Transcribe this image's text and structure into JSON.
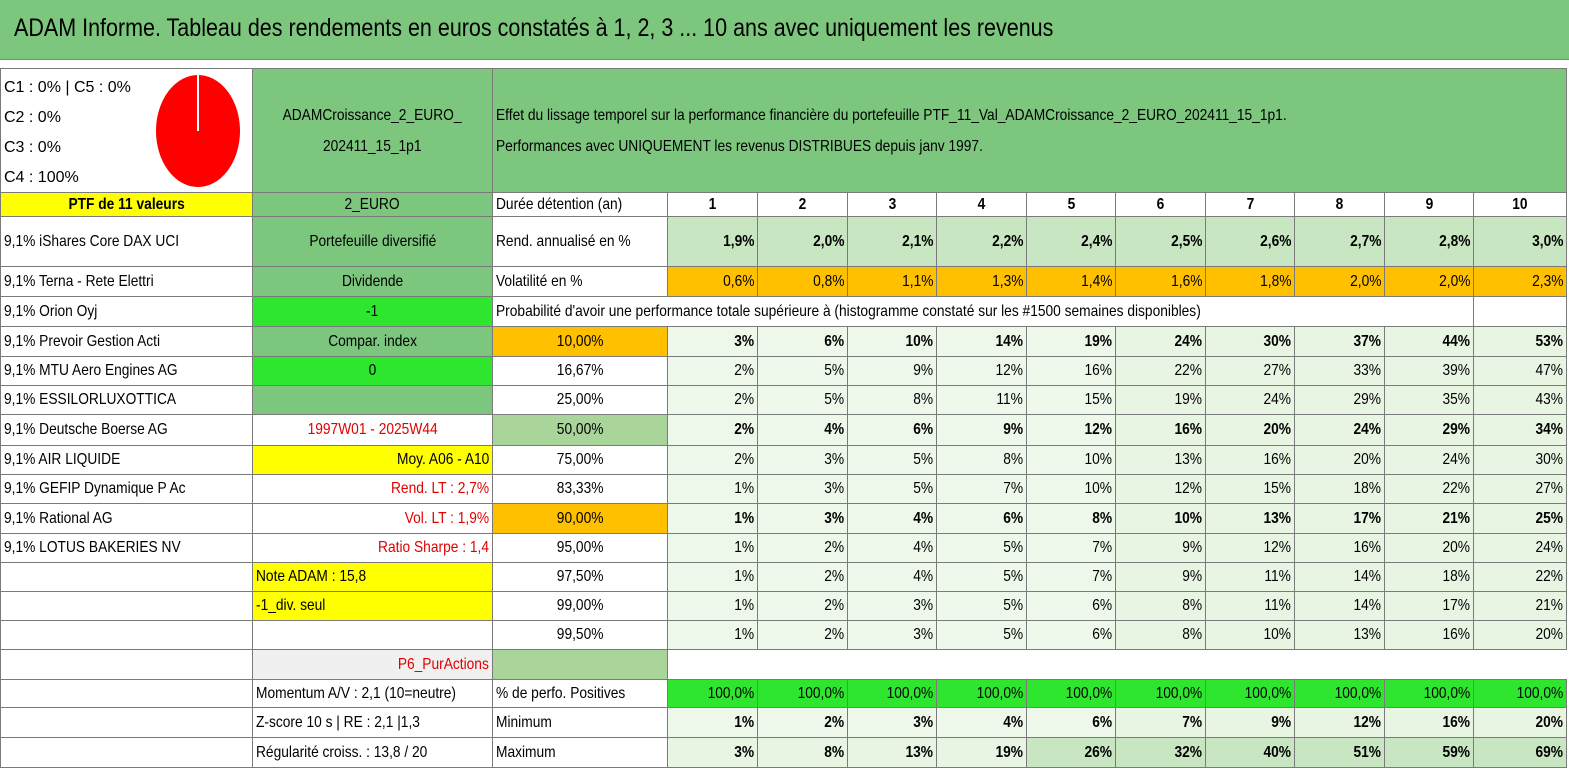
{
  "title": "ADAM Informe. Tableau des rendements en euros constatés à 1, 2, 3 ... 10 ans avec uniquement les revenus",
  "pie": {
    "labels": [
      "C1 : 0% | C5 : 0%",
      "C2 : 0%",
      "C3 : 0%",
      "C4 : 100%"
    ],
    "color": "#ff0000"
  },
  "portfolio_name_line1": "ADAMCroissance_2_EURO_",
  "portfolio_name_line2": "202411_15_1p1",
  "description_line1": "Effet du lissage temporel sur la performance financière du portefeuille PTF_11_Val_ADAMCroissance_2_EURO_202411_15_1p1.",
  "description_line2": "Performances avec UNIQUEMENT les revenus DISTRIBUES depuis janv 1997.",
  "ptf_label": "PTF de 11 valeurs",
  "currency_label": "2_EURO",
  "duration_label": "Durée détention (an)",
  "years": [
    "1",
    "2",
    "3",
    "4",
    "5",
    "6",
    "7",
    "8",
    "9",
    "10"
  ],
  "holdings": [
    "9,1% iShares Core DAX UCI",
    "9,1% Terna - Rete Elettri",
    "9,1% Orion Oyj",
    "9,1% Prevoir Gestion Acti",
    "9,1% MTU Aero Engines AG",
    "9,1% ESSILORLUXOTTICA",
    "9,1% Deutsche Boerse AG",
    "9,1% AIR LIQUIDE",
    "9,1% GEFIP Dynamique P Ac",
    "9,1% Rational AG",
    "9,1% LOTUS BAKERIES NV"
  ],
  "side_info": {
    "portfolio_type": "Portefeuille diversifié",
    "dividend": "Dividende",
    "minus_one": "-1",
    "compar_index": "Compar. index",
    "zero": "0",
    "period": "1997W01 - 2025W44",
    "moy": "Moy. A06 - A10",
    "rend_lt": "Rend. LT : 2,7%",
    "vol_lt": "Vol. LT : 1,9%",
    "sharpe": "Ratio Sharpe : 1,4",
    "note_adam": "Note ADAM : 15,8",
    "div_seul": "-1_div. seul",
    "p6": "P6_PurActions",
    "momentum": "Momentum A/V : 2,1 (10=neutre)",
    "zscore": "Z-score 10 s | RE : 2,1 |1,3",
    "regularite": "Régularité croiss. : 13,8 / 20"
  },
  "rend_label": "Rend. annualisé en %",
  "rend_values": [
    "1,9%",
    "2,0%",
    "2,1%",
    "2,2%",
    "2,4%",
    "2,5%",
    "2,6%",
    "2,7%",
    "2,8%",
    "3,0%"
  ],
  "vol_label": "Volatilité en %",
  "vol_values": [
    "0,6%",
    "0,8%",
    "1,1%",
    "1,3%",
    "1,4%",
    "1,6%",
    "1,8%",
    "2,0%",
    "2,0%",
    "2,3%"
  ],
  "proba_label": "Probabilité d'avoir une performance totale supérieure à (histogramme constaté sur les #1500 semaines disponibles)",
  "proba_rows": [
    {
      "threshold": "10,00%",
      "values": [
        "3%",
        "6%",
        "10%",
        "14%",
        "19%",
        "24%",
        "30%",
        "37%",
        "44%",
        "53%"
      ]
    },
    {
      "threshold": "16,67%",
      "values": [
        "2%",
        "5%",
        "9%",
        "12%",
        "16%",
        "22%",
        "27%",
        "33%",
        "39%",
        "47%"
      ]
    },
    {
      "threshold": "25,00%",
      "values": [
        "2%",
        "5%",
        "8%",
        "11%",
        "15%",
        "19%",
        "24%",
        "29%",
        "35%",
        "43%"
      ]
    },
    {
      "threshold": "50,00%",
      "values": [
        "2%",
        "4%",
        "6%",
        "9%",
        "12%",
        "16%",
        "20%",
        "24%",
        "29%",
        "34%"
      ]
    },
    {
      "threshold": "75,00%",
      "values": [
        "2%",
        "3%",
        "5%",
        "8%",
        "10%",
        "13%",
        "16%",
        "20%",
        "24%",
        "30%"
      ]
    },
    {
      "threshold": "83,33%",
      "values": [
        "1%",
        "3%",
        "5%",
        "7%",
        "10%",
        "12%",
        "15%",
        "18%",
        "22%",
        "27%"
      ]
    },
    {
      "threshold": "90,00%",
      "values": [
        "1%",
        "3%",
        "4%",
        "6%",
        "8%",
        "10%",
        "13%",
        "17%",
        "21%",
        "25%"
      ]
    },
    {
      "threshold": "95,00%",
      "values": [
        "1%",
        "2%",
        "4%",
        "5%",
        "7%",
        "9%",
        "12%",
        "16%",
        "20%",
        "24%"
      ]
    },
    {
      "threshold": "97,50%",
      "values": [
        "1%",
        "2%",
        "4%",
        "5%",
        "7%",
        "9%",
        "11%",
        "14%",
        "18%",
        "22%"
      ]
    },
    {
      "threshold": "99,00%",
      "values": [
        "1%",
        "2%",
        "3%",
        "5%",
        "6%",
        "8%",
        "11%",
        "14%",
        "17%",
        "21%"
      ]
    },
    {
      "threshold": "99,50%",
      "values": [
        "1%",
        "2%",
        "3%",
        "5%",
        "6%",
        "8%",
        "10%",
        "13%",
        "16%",
        "20%"
      ]
    }
  ],
  "pos_label": "% de perfo. Positives",
  "pos_values": [
    "100,0%",
    "100,0%",
    "100,0%",
    "100,0%",
    "100,0%",
    "100,0%",
    "100,0%",
    "100,0%",
    "100,0%",
    "100,0%"
  ],
  "min_label": "Minimum",
  "min_values": [
    "1%",
    "2%",
    "3%",
    "4%",
    "6%",
    "7%",
    "9%",
    "12%",
    "16%",
    "20%"
  ],
  "max_label": "Maximum",
  "max_values": [
    "3%",
    "8%",
    "13%",
    "19%",
    "26%",
    "32%",
    "40%",
    "51%",
    "59%",
    "69%"
  ]
}
